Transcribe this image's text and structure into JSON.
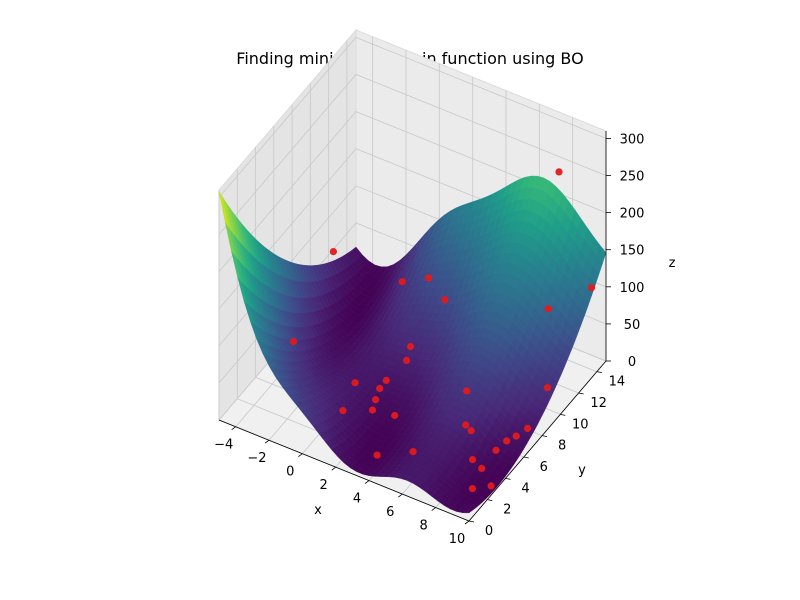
{
  "chart_data": {
    "type": "surface3d",
    "title": "Finding minima of Branin function using BO",
    "xlabel": "x",
    "ylabel": "y",
    "zlabel": "z",
    "xlim": [
      -5,
      10
    ],
    "ylim": [
      0,
      15
    ],
    "zlim": [
      0,
      310
    ],
    "x_ticks": [
      -4,
      -2,
      0,
      2,
      4,
      6,
      8,
      10
    ],
    "y_ticks": [
      0,
      2,
      4,
      6,
      8,
      10,
      12,
      14
    ],
    "z_ticks": [
      0,
      50,
      100,
      150,
      200,
      250,
      300
    ],
    "colormap": "viridis",
    "grid": true,
    "surface_function": "branin",
    "sample_points": {
      "color": "#e31a1c",
      "points": [
        {
          "x": -4.6,
          "y": 11.8,
          "z": 61
        },
        {
          "x": -3.6,
          "y": 5.6,
          "z": 38
        },
        {
          "x": -1.4,
          "y": 13.5,
          "z": 25
        },
        {
          "x": -0.2,
          "y": 14.2,
          "z": 31
        },
        {
          "x": 1.1,
          "y": 13.6,
          "z": 22
        },
        {
          "x": 0.9,
          "y": 10.2,
          "z": 6
        },
        {
          "x": 1.6,
          "y": 8.5,
          "z": 18
        },
        {
          "x": 1.2,
          "y": 7.0,
          "z": 9
        },
        {
          "x": 0.1,
          "y": 5.6,
          "z": 16
        },
        {
          "x": 1.3,
          "y": 6.1,
          "z": 12
        },
        {
          "x": 1.6,
          "y": 5.1,
          "z": 14
        },
        {
          "x": 1.8,
          "y": 4.4,
          "z": 12
        },
        {
          "x": 2.8,
          "y": 5.0,
          "z": 5
        },
        {
          "x": 0.9,
          "y": 2.8,
          "z": 26
        },
        {
          "x": 3.5,
          "y": 1.8,
          "z": 4
        },
        {
          "x": 5.0,
          "y": 3.0,
          "z": 5
        },
        {
          "x": 5.7,
          "y": 7.6,
          "z": 27
        },
        {
          "x": 6.9,
          "y": 5.3,
          "z": 25
        },
        {
          "x": 7.5,
          "y": 4.8,
          "z": 30
        },
        {
          "x": 8.3,
          "y": 3.5,
          "z": 17
        },
        {
          "x": 9.0,
          "y": 2.2,
          "z": 3
        },
        {
          "x": 8.9,
          "y": 3.4,
          "z": 12
        },
        {
          "x": 9.1,
          "y": 4.6,
          "z": 21
        },
        {
          "x": 9.3,
          "y": 5.4,
          "z": 24
        },
        {
          "x": 9.6,
          "y": 5.9,
          "z": 26
        },
        {
          "x": 9.9,
          "y": 6.6,
          "z": 29
        },
        {
          "x": 9.9,
          "y": 2.6,
          "z": 9
        },
        {
          "x": 10.0,
          "y": 8.6,
          "z": 56
        },
        {
          "x": 8.3,
          "y": 11.8,
          "z": 101
        },
        {
          "x": 9.9,
          "y": 13.6,
          "z": 118
        },
        {
          "x": 7.4,
          "y": 14.6,
          "z": 237
        }
      ]
    }
  }
}
